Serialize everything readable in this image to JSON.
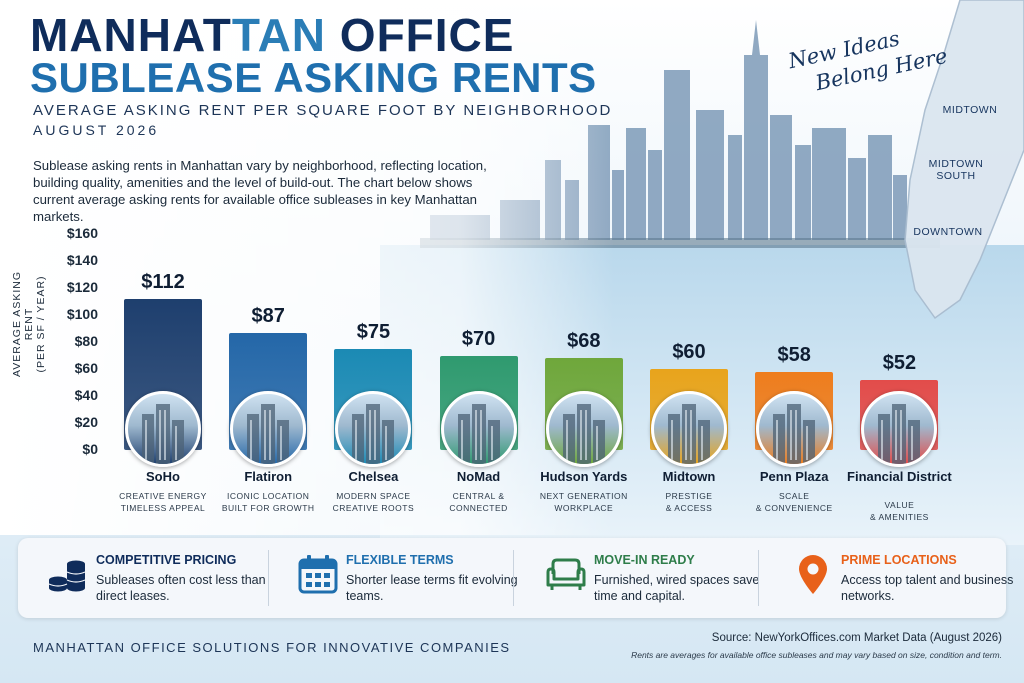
{
  "header": {
    "title_part1": "MANHAT",
    "title_part2": "TAN",
    "title_part3": " OFFICE",
    "title_line2": "SUBLEASE ASKING RENTS",
    "subtitle": "AVERAGE ASKING RENT PER SQUARE FOOT BY NEIGHBORHOOD",
    "date": "AUGUST 2026",
    "intro": "Sublease asking rents in Manhattan vary by neighborhood, reflecting location, building quality, amenities and the level of build-out. The chart below shows current average asking rents for available office subleases in key Manhattan markets."
  },
  "tagline": {
    "line1": "New Ideas",
    "line2": "Belong Here"
  },
  "map_labels": [
    "MIDTOWN",
    "MIDTOWN SOUTH",
    "DOWNTOWN"
  ],
  "chart_data": {
    "type": "bar",
    "categories": [
      "SoHo",
      "Flatiron",
      "Chelsea",
      "NoMad",
      "Hudson Yards",
      "Midtown",
      "Penn Plaza",
      "Financial District"
    ],
    "values": [
      112,
      87,
      75,
      70,
      68,
      60,
      58,
      52
    ],
    "value_labels": [
      "$112",
      "$87",
      "$75",
      "$70",
      "$68",
      "$60",
      "$58",
      "$52"
    ],
    "descriptions": [
      [
        "CREATIVE ENERGY",
        "TIMELESS APPEAL"
      ],
      [
        "ICONIC LOCATION",
        "BUILT FOR GROWTH"
      ],
      [
        "MODERN SPACE",
        "CREATIVE ROOTS"
      ],
      [
        "CENTRAL &",
        "CONNECTED"
      ],
      [
        "NEXT GENERATION",
        "WORKPLACE"
      ],
      [
        "PRESTIGE",
        "& ACCESS"
      ],
      [
        "SCALE",
        "& CONVENIENCE"
      ],
      [
        "VALUE",
        "& AMENITIES"
      ]
    ],
    "colors": [
      "#1e3f6e",
      "#2467a8",
      "#1b8ab4",
      "#2f9a6f",
      "#6fa73b",
      "#e8a41c",
      "#ee7d1d",
      "#e24c4a"
    ],
    "ylabel_line1": "AVERAGE ASKING RENT",
    "ylabel_line2": "(PER SF / YEAR)",
    "yticks": [
      "$0",
      "$20",
      "$40",
      "$60",
      "$80",
      "$100",
      "$120",
      "$140",
      "$160"
    ],
    "ylim": [
      0,
      160
    ],
    "grid": false
  },
  "features": [
    {
      "title": "COMPETITIVE PRICING",
      "text": "Subleases often cost less than direct leases.",
      "color": "#0f2c5b",
      "icon": "coins-icon"
    },
    {
      "title": "FLEXIBLE TERMS",
      "text": "Shorter lease terms fit evolving teams.",
      "color": "#1f6fae",
      "icon": "calendar-icon"
    },
    {
      "title": "MOVE-IN READY",
      "text": "Furnished, wired spaces save time and capital.",
      "color": "#2e7d4a",
      "icon": "armchair-icon"
    },
    {
      "title": "PRIME LOCATIONS",
      "text": "Access top talent and business networks.",
      "color": "#e8611a",
      "icon": "location-pin-icon"
    }
  ],
  "footer": {
    "left": "MANHATTAN OFFICE SOLUTIONS FOR INNOVATIVE COMPANIES",
    "source_label": "Source:",
    "source_text": "NewYorkOffices.com Market Data (August 2026)",
    "note": "Rents are averages for available office subleases and may vary based on size, condition and term."
  }
}
